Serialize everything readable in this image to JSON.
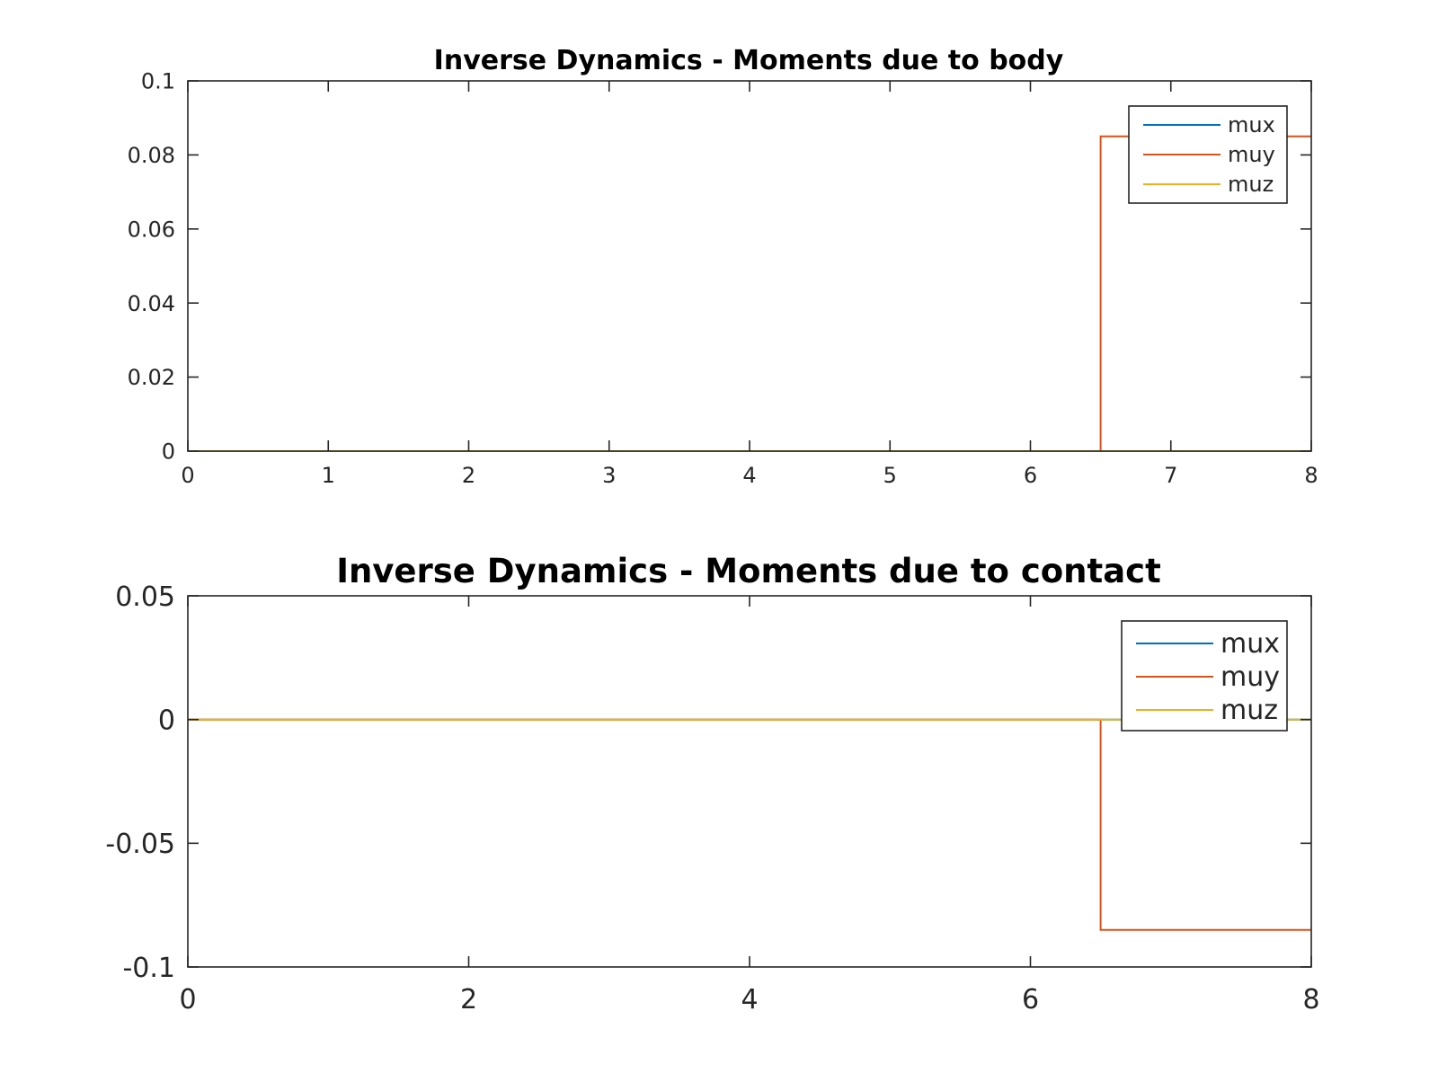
{
  "chart_data": [
    {
      "type": "line",
      "title": "Inverse Dynamics - Moments due to body",
      "xlabel": "",
      "ylabel": "",
      "xlim": [
        0,
        8
      ],
      "ylim": [
        0,
        0.1
      ],
      "xticks": [
        0,
        1,
        2,
        3,
        4,
        5,
        6,
        7,
        8
      ],
      "xtick_labels": [
        "0",
        "1",
        "2",
        "3",
        "4",
        "5",
        "6",
        "7",
        "8"
      ],
      "yticks": [
        0,
        0.02,
        0.04,
        0.06,
        0.08,
        0.1
      ],
      "ytick_labels": [
        "0",
        "0.02",
        "0.04",
        "0.06",
        "0.08",
        "0.1"
      ],
      "grid": false,
      "legend_position": "top-right",
      "series": [
        {
          "name": "mux",
          "color": "#0072BD",
          "x": [
            0,
            6.5,
            6.5,
            8
          ],
          "y": [
            0,
            0,
            0,
            0
          ]
        },
        {
          "name": "muy",
          "color": "#D95319",
          "x": [
            0,
            6.5,
            6.5,
            8
          ],
          "y": [
            0,
            0,
            0.085,
            0.085
          ]
        },
        {
          "name": "muz",
          "color": "#EDB120",
          "x": [
            0,
            6.5,
            6.5,
            8
          ],
          "y": [
            0,
            0,
            0,
            0
          ]
        }
      ]
    },
    {
      "type": "line",
      "title": "Inverse Dynamics - Moments due to contact",
      "xlabel": "",
      "ylabel": "",
      "xlim": [
        0,
        8
      ],
      "ylim": [
        -0.1,
        0.05
      ],
      "xticks": [
        0,
        2,
        4,
        6,
        8
      ],
      "xtick_labels": [
        "0",
        "2",
        "4",
        "6",
        "8"
      ],
      "yticks": [
        -0.1,
        -0.05,
        0,
        0.05
      ],
      "ytick_labels": [
        "-0.1",
        "-0.05",
        "0",
        "0.05"
      ],
      "grid": false,
      "legend_position": "top-right",
      "series": [
        {
          "name": "mux",
          "color": "#0072BD",
          "x": [
            0,
            6.5,
            6.5,
            8
          ],
          "y": [
            0,
            0,
            0,
            0
          ]
        },
        {
          "name": "muy",
          "color": "#D95319",
          "x": [
            0,
            6.5,
            6.5,
            8
          ],
          "y": [
            0,
            0,
            -0.085,
            -0.085
          ]
        },
        {
          "name": "muz",
          "color": "#EDB120",
          "x": [
            0,
            6.5,
            6.5,
            8
          ],
          "y": [
            0,
            0,
            0,
            0
          ]
        }
      ]
    }
  ]
}
